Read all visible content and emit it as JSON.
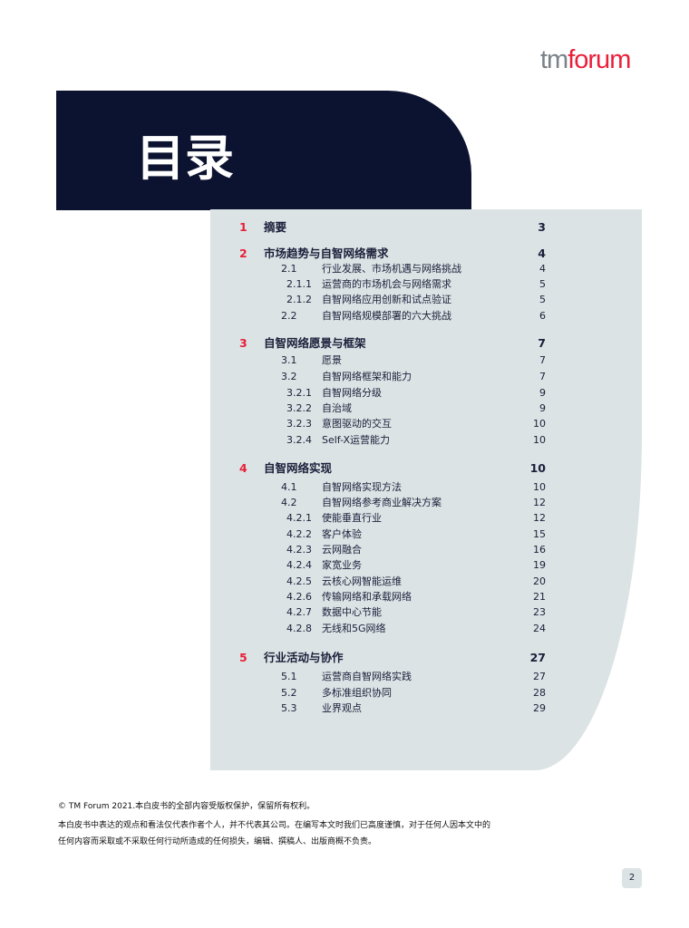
{
  "logo": {
    "tm": "tm",
    "forum": "forum"
  },
  "title": "目录",
  "toc": [
    {
      "level": 1,
      "num": "1",
      "text": "摘要",
      "page": "3"
    },
    {
      "level": 1,
      "num": "2",
      "text": "市场趋势与自智网络需求",
      "page": "4"
    },
    {
      "level": 2,
      "num": "2.1",
      "text": "行业发展、市场机遇与网络挑战",
      "page": "4"
    },
    {
      "level": 3,
      "num": "2.1.1",
      "text": "运营商的市场机会与网络需求",
      "page": "5"
    },
    {
      "level": 3,
      "num": "2.1.2",
      "text": "自智网络应用创新和试点验证",
      "page": "5"
    },
    {
      "level": 2,
      "num": "2.2",
      "text": "自智网络规模部署的六大挑战",
      "page": "6"
    },
    {
      "level": 1,
      "num": "3",
      "text": "自智网络愿景与框架",
      "page": "7"
    },
    {
      "level": 2,
      "num": "3.1",
      "text": "愿景",
      "page": "7"
    },
    {
      "level": 2,
      "num": "3.2",
      "text": "自智网络框架和能力",
      "page": "7"
    },
    {
      "level": 3,
      "num": "3.2.1",
      "text": "自智网络分级",
      "page": "9"
    },
    {
      "level": 3,
      "num": "3.2.2",
      "text": "自治域",
      "page": "9"
    },
    {
      "level": 3,
      "num": "3.2.3",
      "text": "意图驱动的交互",
      "page": "10"
    },
    {
      "level": 3,
      "num": "3.2.4",
      "text": "Self-X运营能力",
      "page": "10"
    },
    {
      "level": 1,
      "num": "4",
      "text": "自智网络实现",
      "page": "10"
    },
    {
      "level": 2,
      "num": "4.1",
      "text": "自智网络实现方法",
      "page": "10"
    },
    {
      "level": 2,
      "num": "4.2",
      "text": "自智网络参考商业解决方案",
      "page": "12"
    },
    {
      "level": 3,
      "num": "4.2.1",
      "text": "使能垂直行业",
      "page": "12"
    },
    {
      "level": 3,
      "num": "4.2.2",
      "text": "客户体验",
      "page": "15"
    },
    {
      "level": 3,
      "num": "4.2.3",
      "text": "云网融合",
      "page": "16"
    },
    {
      "level": 3,
      "num": "4.2.4",
      "text": "家宽业务",
      "page": "19"
    },
    {
      "level": 3,
      "num": "4.2.5",
      "text": "云核心网智能运维",
      "page": "20"
    },
    {
      "level": 3,
      "num": "4.2.6",
      "text": "传输网络和承载网络",
      "page": "21"
    },
    {
      "level": 3,
      "num": "4.2.7",
      "text": "数据中心节能",
      "page": "23"
    },
    {
      "level": 3,
      "num": "4.2.8",
      "text": "无线和5G网络",
      "page": "24"
    },
    {
      "level": 1,
      "num": "5",
      "text": "行业活动与协作",
      "page": "27"
    },
    {
      "level": 2,
      "num": "5.1",
      "text": "运营商自智网络实践",
      "page": "27"
    },
    {
      "level": 2,
      "num": "5.2",
      "text": "多标准组织协同",
      "page": "28"
    },
    {
      "level": 2,
      "num": "5.3",
      "text": "业界观点",
      "page": "29"
    }
  ],
  "footer": [
    "© TM Forum 2021.本白皮书的全部内容受版权保护，保留所有权利。",
    "本白皮书中表达的观点和看法仅代表作者个人，并不代表其公司。在编写本文时我们已高度谨慎，对于任何人因本文中的",
    "任何内容而采取或不采取任何行动所造成的任何损失，编辑、撰稿人、出版商概不负责。"
  ],
  "page_number": "2",
  "colors": {
    "navy": "#0c1330",
    "accent": "#e8203a",
    "panel": "#dbe3e4"
  }
}
